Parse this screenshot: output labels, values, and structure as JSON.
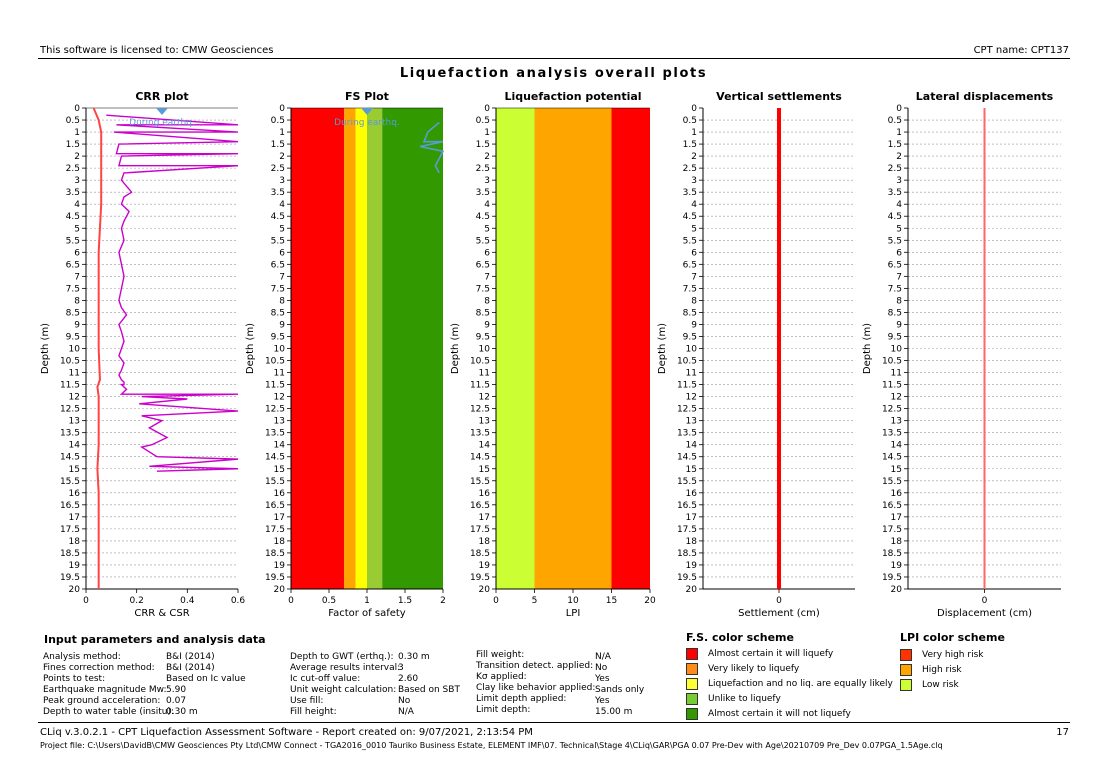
{
  "header": {
    "license": "This software is licensed to: CMW Geosciences",
    "cpt_name": "CPT name: CPT137",
    "title": "Liquefaction analysis overall plots"
  },
  "footer": {
    "software": "CLiq v.3.0.2.1 - CPT Liquefaction Assessment Software - Report created on: 9/07/2021, 2:13:54 PM",
    "page": "17",
    "project_file": "Project file: C:\\Users\\DavidB\\CMW Geosciences Pty Ltd\\CMW Connect - TGA2016_0010 Tauriko Business Estate, ELEMENT IMF\\07. Technical\\Stage 4\\CLiq\\GAR\\PGA 0.07 Pre-Dev with Age\\20210709 Pre_Dev 0.07PGA_1.5Age.clq"
  },
  "colors": {
    "red": "#ff0000",
    "orange": "#ffa500",
    "yellow": "#ffff00",
    "lightgreen": "#99cc33",
    "green": "#339900",
    "lime": "#ccff33",
    "lpi_orange": "#ffa500",
    "crr": "#cc00cc",
    "csr": "#ff4444",
    "marker": "#5b9bd5"
  },
  "chart_data": [
    {
      "type": "line",
      "title": "CRR plot",
      "xlabel": "CRR & CSR",
      "ylabel": "Depth (m)",
      "xlim": [
        0,
        0.6
      ],
      "ylim": [
        0,
        20
      ],
      "xticks": [
        "0",
        "0.2",
        "0.4",
        "0.6"
      ],
      "annotation": "During earthq.",
      "series": [
        {
          "name": "CRR",
          "color": "#cc00cc",
          "x": [
            0.08,
            0.6,
            0.12,
            0.6,
            0.11,
            0.6,
            0.13,
            0.12,
            0.6,
            0.14,
            0.13,
            0.6,
            0.15,
            0.14,
            0.18,
            0.15,
            0.14,
            0.17,
            0.15,
            0.14,
            0.15,
            0.13,
            0.14,
            0.15,
            0.14,
            0.13,
            0.14,
            0.16,
            0.13,
            0.14,
            0.15,
            0.14,
            0.13,
            0.15,
            0.14,
            0.13,
            0.14,
            0.15,
            0.15,
            0.14,
            0.15,
            0.16,
            0.14,
            0.6,
            0.22,
            0.4,
            0.21,
            0.6,
            0.22,
            0.3,
            0.25,
            0.32,
            0.26,
            0.22,
            0.28,
            0.6,
            0.25,
            0.6,
            0.28
          ],
          "y": [
            0.3,
            0.7,
            0.7,
            1.0,
            1.0,
            1.4,
            1.5,
            1.9,
            1.9,
            2.0,
            2.4,
            2.4,
            2.7,
            3.0,
            3.5,
            3.7,
            4.0,
            4.3,
            4.7,
            5.0,
            5.5,
            6.0,
            6.5,
            7.0,
            7.5,
            8.0,
            8.3,
            8.6,
            9.0,
            9.3,
            9.7,
            10.0,
            10.3,
            10.6,
            10.9,
            11.1,
            11.3,
            11.4,
            11.5,
            11.5,
            11.6,
            11.7,
            11.9,
            11.9,
            12.0,
            12.1,
            12.3,
            12.6,
            12.8,
            13.0,
            13.3,
            13.7,
            14.0,
            14.1,
            14.5,
            14.6,
            14.9,
            15.0,
            15.1
          ]
        },
        {
          "name": "CSR",
          "color": "#ff4444",
          "x": [
            0.03,
            0.05,
            0.06,
            0.06,
            0.06,
            0.05,
            0.05,
            0.05,
            0.055,
            0.045,
            0.05,
            0.05,
            0.05,
            0.045,
            0.05,
            0.05,
            0.05,
            0.05,
            0.05,
            0.05,
            0.05
          ],
          "y": [
            0,
            0.5,
            1,
            2,
            4,
            6,
            8,
            10,
            11.3,
            11.6,
            12,
            13,
            14,
            15,
            16,
            17,
            17.4,
            17.5,
            18,
            19,
            20
          ]
        }
      ]
    },
    {
      "type": "area",
      "title": "FS Plot",
      "xlabel": "Factor of safety",
      "ylabel": "Depth (m)",
      "xlim": [
        0,
        2
      ],
      "ylim": [
        0,
        20
      ],
      "xticks": [
        "0",
        "0.5",
        "1",
        "1.5",
        "2"
      ],
      "annotation": "During earthq.",
      "bands": [
        {
          "from": 0,
          "to": 0.7,
          "color": "#ff0000"
        },
        {
          "from": 0.7,
          "to": 0.85,
          "color": "#ffa500"
        },
        {
          "from": 0.85,
          "to": 1.0,
          "color": "#ffff00"
        },
        {
          "from": 1.0,
          "to": 1.2,
          "color": "#99cc33"
        },
        {
          "from": 1.2,
          "to": 2.0,
          "color": "#339900"
        }
      ],
      "fs_series": {
        "x": [
          1.95,
          1.8,
          1.75,
          2.0,
          1.7,
          2.0,
          1.9,
          1.95
        ],
        "y": [
          0.6,
          1.0,
          1.4,
          1.4,
          1.6,
          1.8,
          2.4,
          2.7
        ]
      }
    },
    {
      "type": "area",
      "title": "Liquefaction potential",
      "xlabel": "LPI",
      "ylabel": "Depth (m)",
      "xlim": [
        0,
        20
      ],
      "ylim": [
        0,
        20
      ],
      "xticks": [
        "0",
        "5",
        "10",
        "15",
        "20"
      ],
      "bands": [
        {
          "from": 0,
          "to": 5,
          "color": "#ccff33"
        },
        {
          "from": 5,
          "to": 15,
          "color": "#ffa500"
        },
        {
          "from": 15,
          "to": 20,
          "color": "#ff0000"
        }
      ]
    },
    {
      "type": "line",
      "title": "Vertical settlements",
      "xlabel": "Settlement (cm)",
      "ylabel": "Depth (m)",
      "ylim": [
        0,
        20
      ],
      "xticks": [
        "0"
      ],
      "series": [
        {
          "x": [
            0,
            0
          ],
          "y": [
            0,
            20
          ],
          "color": "#ff0000"
        }
      ]
    },
    {
      "type": "line",
      "title": "Lateral displacements",
      "xlabel": "Displacement (cm)",
      "ylabel": "Depth (m)",
      "ylim": [
        0,
        20
      ],
      "xticks": [
        "0"
      ],
      "series": [
        {
          "x": [
            0,
            0
          ],
          "y": [
            0,
            20
          ],
          "color": "#ff6666"
        }
      ]
    }
  ],
  "params": {
    "heading": "Input parameters and analysis data",
    "col1": [
      [
        "Analysis method:",
        "B&I (2014)"
      ],
      [
        "Fines correction method:",
        "B&I (2014)"
      ],
      [
        "Points to test:",
        "Based on Ic value"
      ],
      [
        "Earthquake magnitude Mw:",
        "5.90"
      ],
      [
        "Peak ground acceleration:",
        "0.07"
      ],
      [
        "Depth to water table (insitu):",
        "0.30 m"
      ]
    ],
    "col2": [
      [
        "Depth to GWT (erthq.):",
        "0.30 m"
      ],
      [
        "Average results interval:",
        "3"
      ],
      [
        "Ic cut-off value:",
        "2.60"
      ],
      [
        "Unit weight calculation:",
        "Based on SBT"
      ],
      [
        "Use fill:",
        "No"
      ],
      [
        "Fill height:",
        "N/A"
      ]
    ],
    "col3": [
      [
        "Fill weight:",
        "N/A"
      ],
      [
        "Transition detect. applied:",
        "No"
      ],
      [
        "Kσ applied:",
        "Yes"
      ],
      [
        "Clay like behavior applied:",
        "Sands only"
      ],
      [
        "Limit depth applied:",
        "Yes"
      ],
      [
        "Limit depth:",
        "15.00 m"
      ]
    ]
  },
  "fs_legend": {
    "heading": "F.S. color scheme",
    "items": [
      {
        "label": "Almost certain it will liquefy",
        "color": "#ff0000"
      },
      {
        "label": "Very likely to liquefy",
        "color": "#ff8c1a"
      },
      {
        "label": "Liquefaction and no liq. are equally likely",
        "color": "#ffff33"
      },
      {
        "label": "Unlike to liquefy",
        "color": "#77cc33"
      },
      {
        "label": "Almost certain it will not liquefy",
        "color": "#339900"
      }
    ]
  },
  "lpi_legend": {
    "heading": "LPI color scheme",
    "items": [
      {
        "label": "Very high risk",
        "color": "#ff3300"
      },
      {
        "label": "High risk",
        "color": "#ffa500"
      },
      {
        "label": "Low risk",
        "color": "#ccff33"
      }
    ]
  }
}
